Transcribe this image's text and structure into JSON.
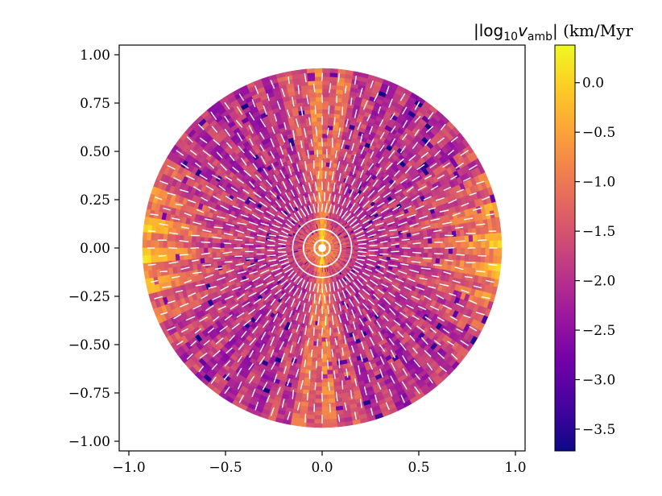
{
  "chart_data": {
    "type": "heatmap",
    "subtype": "polar-disk map with vector overlay",
    "title": "",
    "xlabel": "",
    "ylabel": "",
    "xlim": [
      -1.05,
      1.05
    ],
    "ylim": [
      -1.05,
      1.05
    ],
    "x_ticks": [
      -1.0,
      -0.5,
      0.0,
      0.5,
      1.0
    ],
    "x_tick_labels": [
      "−1.0",
      "−0.5",
      "0.0",
      "0.5",
      "1.0"
    ],
    "y_ticks": [
      1.0,
      0.75,
      0.5,
      0.25,
      0.0,
      -0.25,
      -0.5,
      -0.75,
      -1.0
    ],
    "y_tick_labels": [
      "1.00",
      "0.75",
      "0.50",
      "0.25",
      "0.00",
      "−0.25",
      "−0.50",
      "−0.75",
      "−1.00"
    ],
    "disk_radius": 0.93,
    "inner_hole_radius": 0.02,
    "field": "log10 |v_amb| — brightest (~0.3) along the equator edges and the vertical axis, darkest (~-3.7) in scattered patches at mid-latitudes",
    "vectors": "white short segments, radially oriented, swirling near the center ring",
    "colorbar": {
      "label_prefix": "|log",
      "label_sub1": "10",
      "label_var": "v",
      "label_sub2": "amb",
      "label_suffix": "| (km/Myr",
      "range": [
        -3.72,
        0.38
      ],
      "ticks": [
        0.0,
        -0.5,
        -1.0,
        -1.5,
        -2.0,
        -2.5,
        -3.0,
        -3.5
      ],
      "tick_labels": [
        "0.0",
        "−0.5",
        "−1.0",
        "−1.5",
        "−2.0",
        "−2.5",
        "−3.0",
        "−3.5"
      ],
      "colormap": "plasma",
      "colormap_stops": [
        "#0d0887",
        "#46039f",
        "#7201a8",
        "#9c179e",
        "#bd3786",
        "#d8576b",
        "#ed7953",
        "#fb9f3a",
        "#fdca26",
        "#f0f921"
      ]
    },
    "colors": {
      "vector": "#ffffff",
      "axes": "#000000",
      "background": "#ffffff"
    }
  }
}
